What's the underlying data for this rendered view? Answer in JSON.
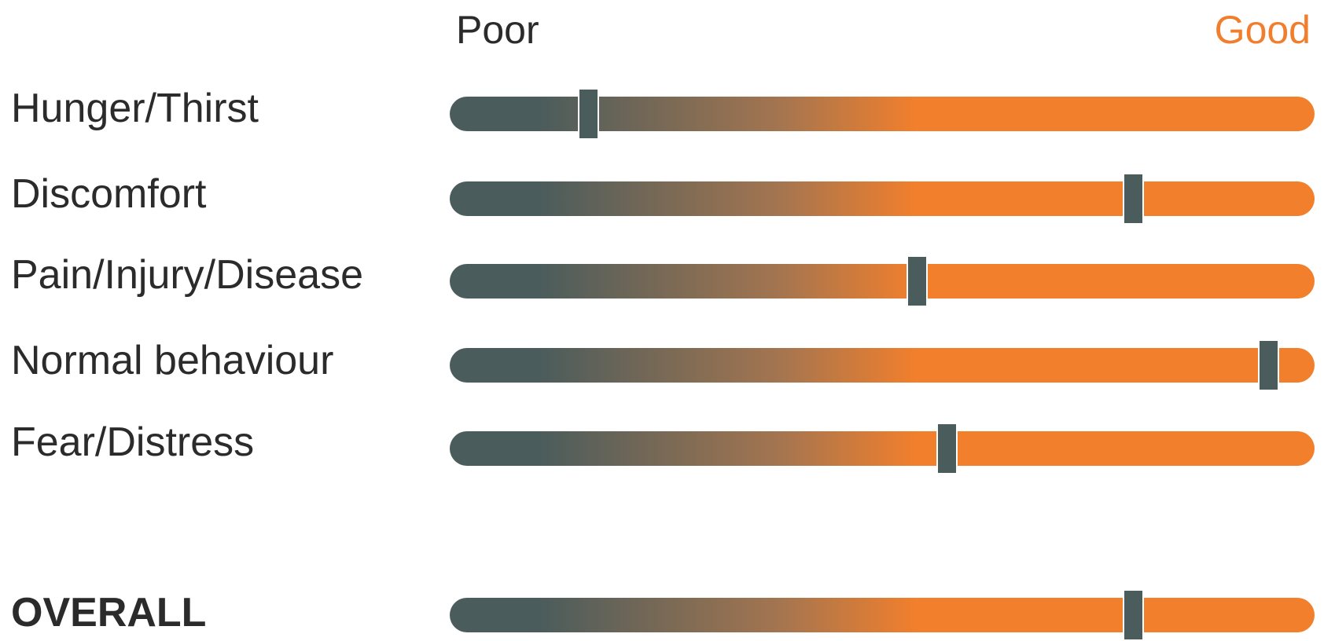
{
  "chart_data": {
    "type": "slider-rating",
    "scale": {
      "min_label": "Poor",
      "max_label": "Good",
      "min_color": "#4a5c5c",
      "max_color": "#f27f2c"
    },
    "rows": [
      {
        "label": "Hunger/Thirst",
        "value": 0.16,
        "bold": false
      },
      {
        "label": "Discomfort",
        "value": 0.79,
        "bold": false
      },
      {
        "label": "Pain/Injury/Disease",
        "value": 0.54,
        "bold": false
      },
      {
        "label": "Normal behaviour",
        "value": 0.947,
        "bold": false
      },
      {
        "label": "Fear/Distress",
        "value": 0.575,
        "bold": false
      },
      {
        "label": "OVERALL",
        "value": 0.79,
        "bold": true
      }
    ]
  }
}
